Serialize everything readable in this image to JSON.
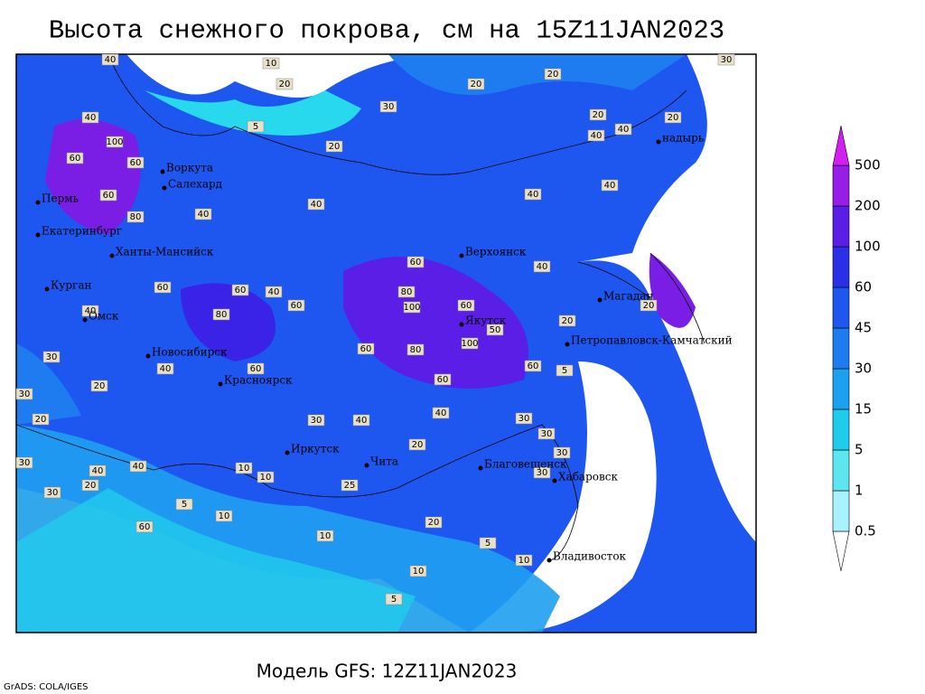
{
  "title": "Высота снежного покрова, см на 15Z11JAN2023",
  "subtitle": "Модель GFS: 12Z11JAN2023",
  "credit": "GrADS: COLA/IGES",
  "legend": {
    "levels": [
      0.5,
      1,
      5,
      15,
      30,
      45,
      60,
      100,
      200,
      500
    ],
    "colors": [
      "#a8f2ff",
      "#5ee6f0",
      "#20ccec",
      "#1ea0f0",
      "#1e7cf0",
      "#1e56f0",
      "#2a30e6",
      "#5a1ee6",
      "#961ee6",
      "#c81ef0"
    ],
    "below_color": "#ffffff",
    "above_color": "#d21ef0"
  },
  "cities": [
    "Воркута",
    "Салехард",
    "Пермь",
    "Екатеринбург",
    "Ханты-Мансийск",
    "Курган",
    "Омск",
    "Новосибирск",
    "Красноярск",
    "Иркутск",
    "Чита",
    "Верхоянск",
    "Якутск",
    "Магадан",
    "надырь",
    "Петропавловск-Камчатский",
    "Благовещенск",
    "Хабаровск",
    "Владивосток"
  ],
  "map_labels": [
    40,
    10,
    20,
    20,
    20,
    30,
    40,
    100,
    60,
    60,
    20,
    40,
    40,
    5,
    20,
    60,
    40,
    40,
    40,
    60,
    40,
    60,
    60,
    40,
    80,
    60,
    80,
    100,
    60,
    40,
    60,
    80,
    100,
    50,
    60,
    40,
    60,
    30,
    30,
    20,
    60,
    5,
    40,
    40,
    30,
    30,
    20,
    10,
    10,
    25,
    10,
    10,
    20,
    5,
    10,
    10,
    5,
    40,
    20,
    40,
    60,
    5,
    30,
    30,
    20,
    30,
    30,
    30,
    20,
    30,
    20,
    20,
    80,
    40
  ]
}
